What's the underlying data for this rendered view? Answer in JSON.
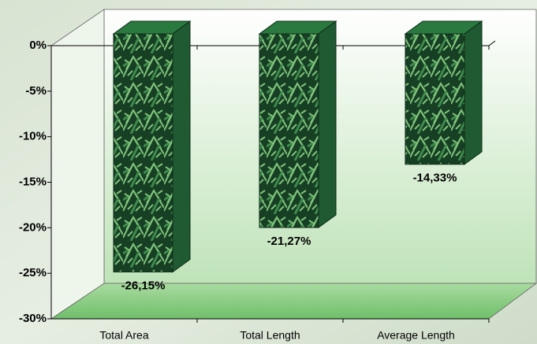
{
  "chart_data": {
    "type": "bar3d",
    "categories": [
      "Total Area",
      "Total Length",
      "Average Length"
    ],
    "values": [
      -26.15,
      -21.27,
      -14.33
    ],
    "value_labels": [
      "-26,15%",
      "-21,27%",
      "-14,33%"
    ],
    "color": "#1f5a32",
    "ylim": [
      -30,
      0
    ],
    "yticks": [
      {
        "value": 0,
        "label": "0%"
      },
      {
        "value": -5,
        "label": "-5%"
      },
      {
        "value": -10,
        "label": "-10%"
      },
      {
        "value": -15,
        "label": "-15%"
      },
      {
        "value": -20,
        "label": "-20%"
      },
      {
        "value": -25,
        "label": "-25%"
      },
      {
        "value": -30,
        "label": "-30%"
      }
    ]
  }
}
